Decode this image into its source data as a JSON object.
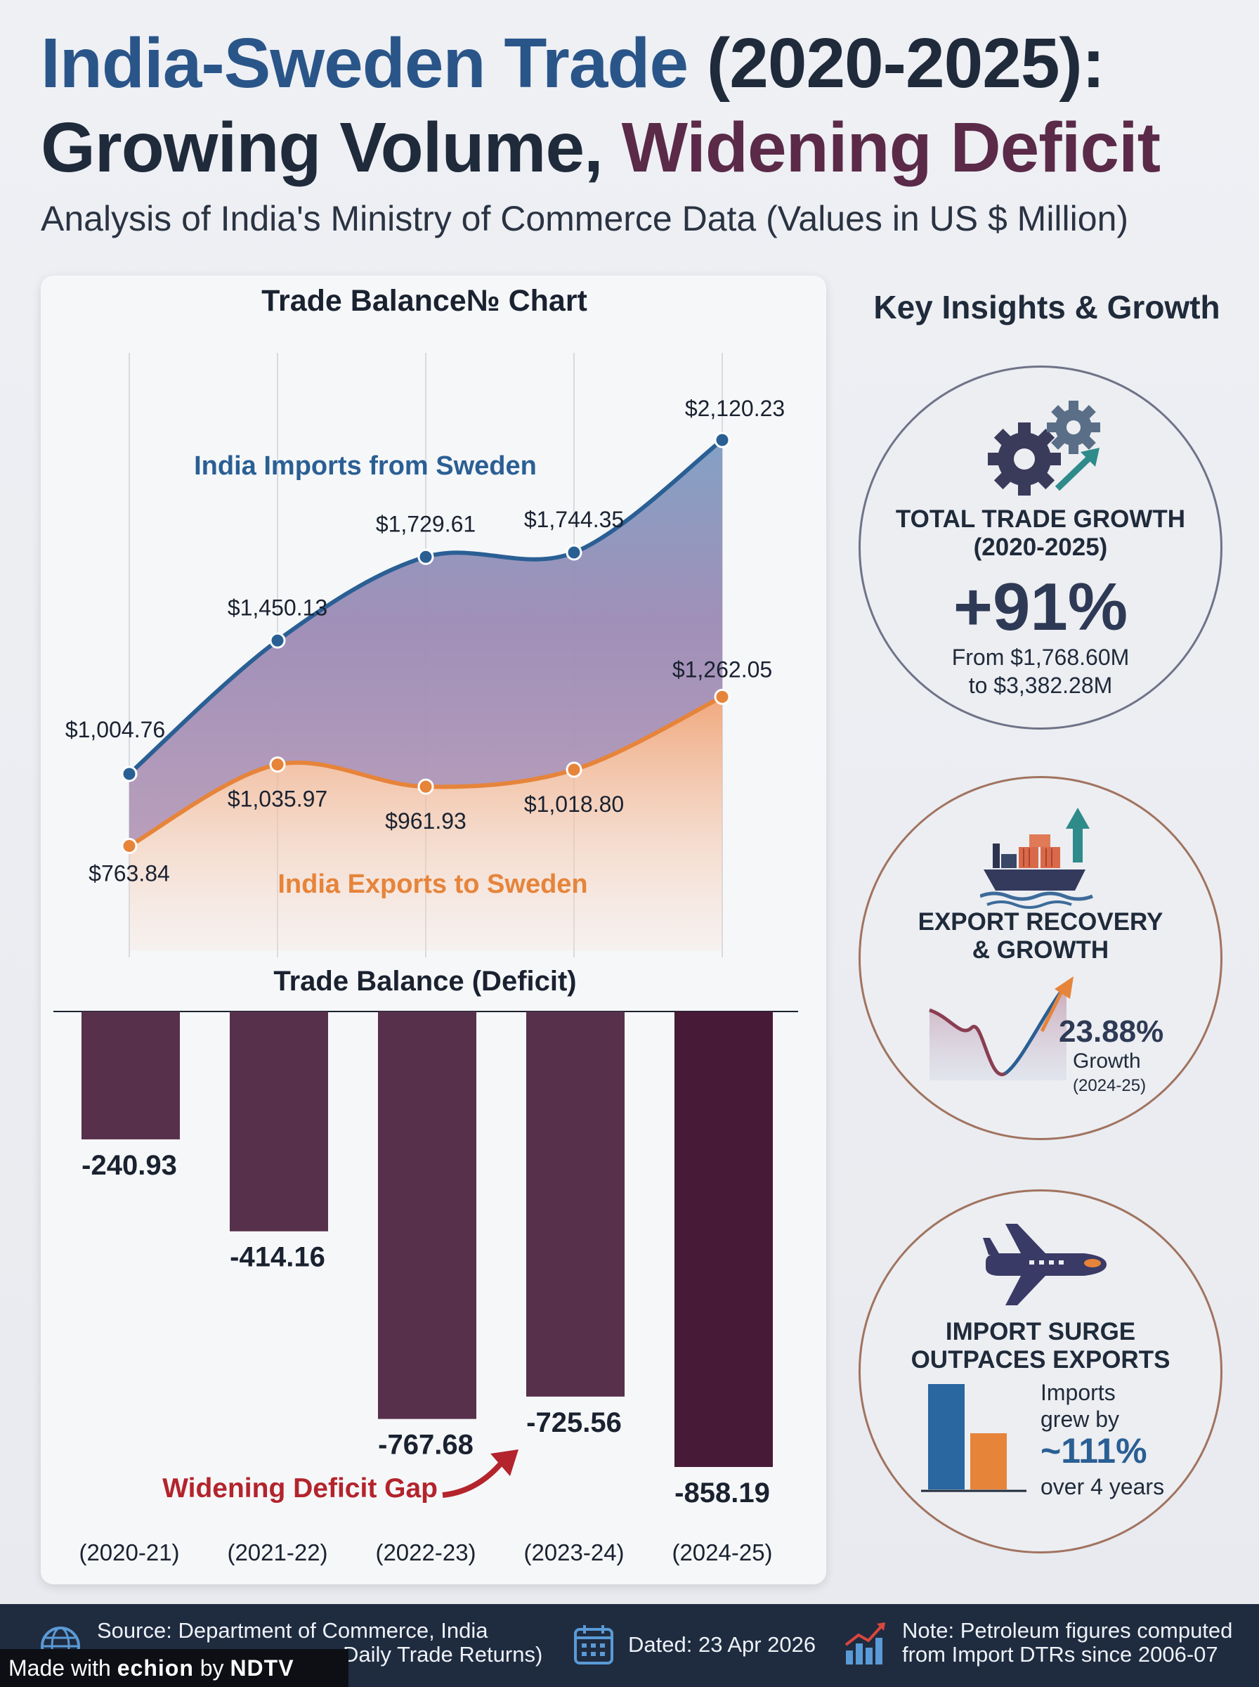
{
  "header": {
    "title_part1": "India-Sweden Trade",
    "title_part2": " (2020-2025):",
    "title_line2_part1": "Growing Volume, ",
    "title_line2_part2": "Widening Deficit",
    "subtitle": "Analysis of India's Ministry of Commerce Data (Values in US $ Million)"
  },
  "chart_data": [
    {
      "type": "area",
      "title": "Trade Balance№ Chart",
      "categories": [
        "(2020-21)",
        "(2021-22)",
        "(2022-23)",
        "(2023-24)",
        "(2024-25)"
      ],
      "series": [
        {
          "name": "India Imports from Sweden",
          "values": [
            1004.76,
            1450.13,
            1729.61,
            1744.35,
            2120.23
          ],
          "labels": [
            "$1,004.76",
            "$1,450.13",
            "$1,729.61",
            "$1,744.35",
            "$2,120.23"
          ],
          "color": "#2a5f94"
        },
        {
          "name": "India Exports to Sweden",
          "values": [
            763.84,
            1035.97,
            961.93,
            1018.8,
            1262.05
          ],
          "labels": [
            "$763.84",
            "$1,035.97",
            "$961.93",
            "$1,018.80",
            "$1,262.05"
          ],
          "color": "#e6843a"
        }
      ],
      "ylim": [
        650,
        2200
      ],
      "grid": "vertical"
    },
    {
      "type": "bar",
      "title": "Trade Balance (Deficit)",
      "categories": [
        "(2020-21)",
        "(2021-22)",
        "(2022-23)",
        "(2023-24)",
        "(2024-25)"
      ],
      "values": [
        -240.93,
        -414.16,
        -767.68,
        -725.56,
        -858.19
      ],
      "labels": [
        "-240.93",
        "-414.16",
        "-767.68",
        "-725.56",
        "-858.19"
      ],
      "ylim": [
        -858.19,
        0
      ],
      "bar_color": "#57304b",
      "highlight_color": "#471a37",
      "annotation": "Widening Deficit Gap"
    }
  ],
  "insights": {
    "title": "Key Insights & Growth",
    "total": {
      "icon": "gears-icon",
      "head1": "TOTAL TRADE GROWTH",
      "head2": "(2020-2025)",
      "value": "+91%",
      "line1": "From $1,768.60M",
      "line2": "to $3,382.28M"
    },
    "export": {
      "icon": "cargo-ship-icon",
      "head1": "EXPORT RECOVERY",
      "head2": "& GROWTH",
      "value": "23.88%",
      "line1": "Growth",
      "line2": "(2024-25)"
    },
    "import": {
      "icon": "airplane-icon",
      "head1": "IMPORT SURGE",
      "head2": "OUTPACES EXPORTS",
      "line1": "Imports",
      "line2": "grew by",
      "value": "~111%",
      "line3": "over 4 years"
    }
  },
  "footer": {
    "source_line1": "Source: Department of Commerce, India",
    "source_line2": "Daily Trade Returns)",
    "dated": "Dated: 23 Apr 2026",
    "note_line1": "Note: Petroleum figures computed",
    "note_line2": "from Import DTRs since 2006-07",
    "made_with": "Made with ",
    "made_brand": "echion",
    "made_by": " by ",
    "made_org": "NDTV"
  },
  "colors": {
    "imports": "#2a5f94",
    "exports": "#e6843a",
    "deficit": "#57304b",
    "accent_red": "#b3242c"
  }
}
